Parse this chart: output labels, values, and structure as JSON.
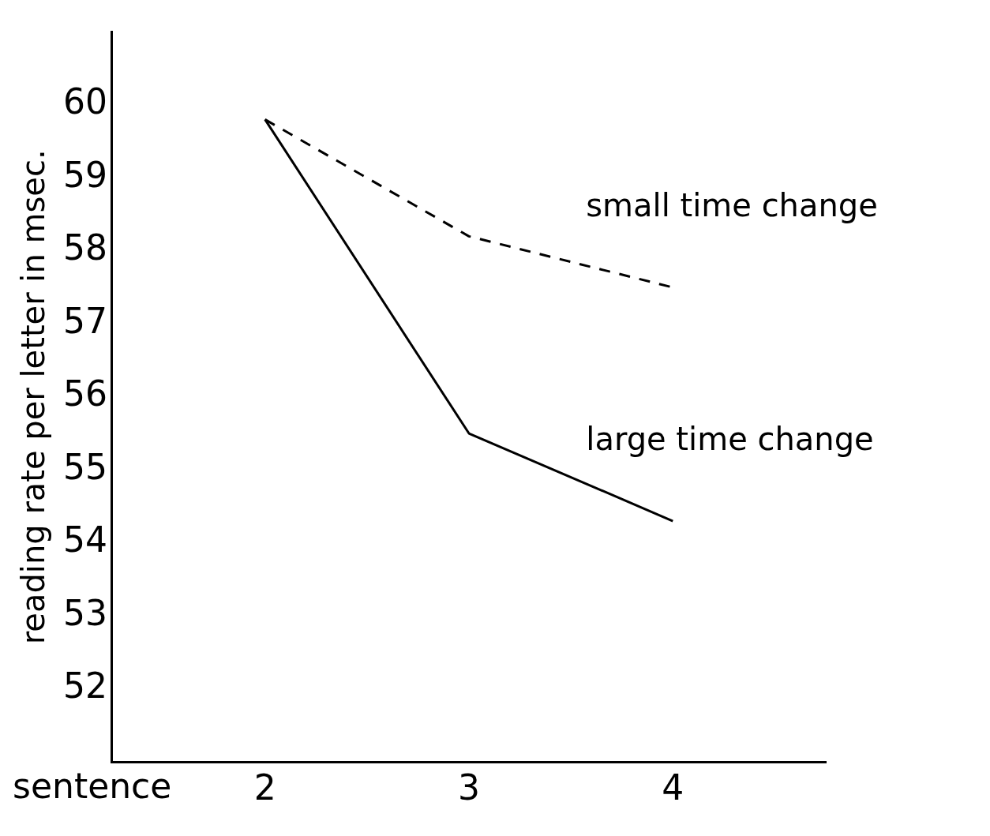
{
  "chart_data": {
    "type": "line",
    "xlabel": "sentence",
    "ylabel": "reading rate per letter in msec.",
    "x": [
      2,
      3,
      4
    ],
    "xlim": [
      1.25,
      4.75
    ],
    "xticks": [
      2,
      3,
      4
    ],
    "ylim": [
      51,
      61
    ],
    "yticks": [
      52,
      53,
      54,
      55,
      56,
      57,
      58,
      59,
      60
    ],
    "grid": false,
    "legend": false,
    "marker": "none",
    "series": [
      {
        "name": "small time change",
        "color": "#000000",
        "line_style": "dashed",
        "values": [
          59.8,
          58.2,
          57.5
        ]
      },
      {
        "name": "large time change",
        "color": "#000000",
        "line_style": "solid",
        "values": [
          59.8,
          55.5,
          54.3
        ]
      }
    ]
  }
}
